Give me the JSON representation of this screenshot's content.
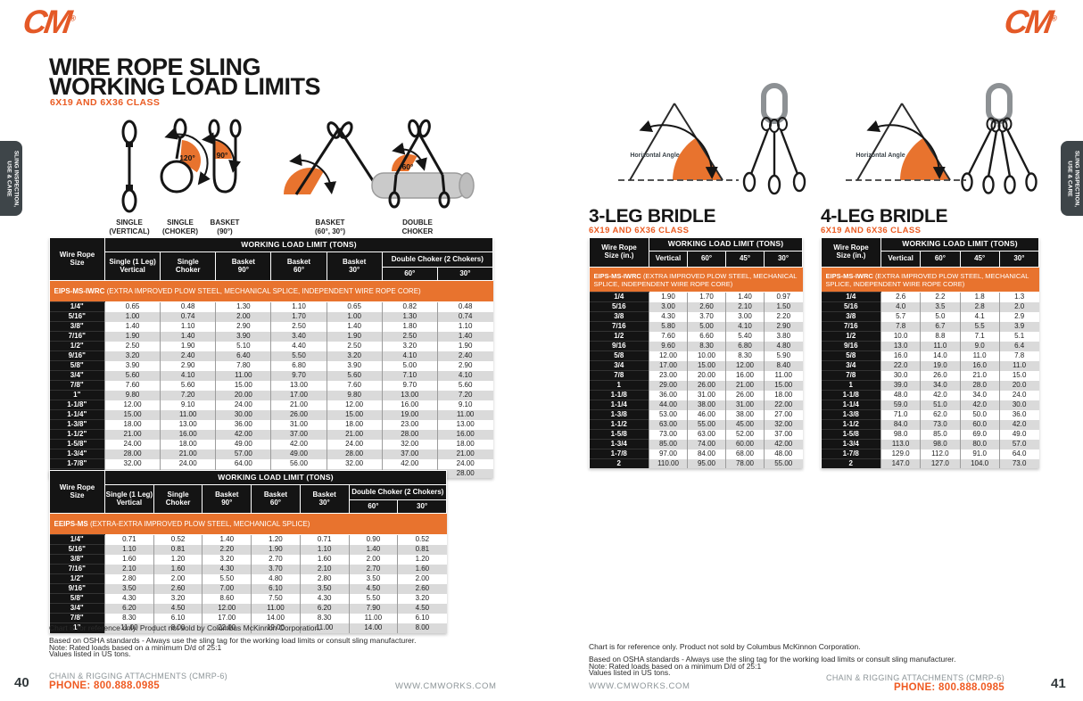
{
  "logo": {
    "text": "CM",
    "reg": "®"
  },
  "side_tab": {
    "label": "SLING INSPECTION,\nUSE & CARE"
  },
  "left_page": {
    "title_line1": "WIRE ROPE SLING",
    "title_line2": "WORKING LOAD LIMITS",
    "subtitle": "6X19 AND 6X36 CLASS",
    "diagram_labels": [
      "SINGLE\n(VERTICAL)",
      "SINGLE\n(CHOKER)",
      "BASKET\n(90°)",
      "BASKET\n(60°, 30°)",
      "DOUBLE\nCHOKER"
    ],
    "diagram_angles": {
      "single_choker": "120°",
      "basket_90": "90°",
      "double_choker": "60°"
    },
    "notes": [
      "Chart is for reference only. Product not sold by Columbus McKinnon Corporation.",
      "Based on OSHA standards - Always use the sling tag for the working load limits or consult sling manufacturer.",
      "Note: Rated loads based on a minimum D/d of 25:1",
      "Values listed in US tons."
    ],
    "footer": {
      "page": "40",
      "catalog": "CHAIN & RIGGING ATTACHMENTS (CMRP-6)",
      "phone": "PHONE: 800.888.0985",
      "website": "WWW.CMWORKS.COM"
    }
  },
  "table_headers": {
    "size": "Wire Rope\nSize",
    "size_in": "Wire Rope\nSize (in.)",
    "wll": "WORKING LOAD LIMIT (TONS)",
    "cols": [
      "Single (1 Leg)\nVertical",
      "Single\nChoker",
      "Basket\n90°",
      "Basket\n60°",
      "Basket\n30°"
    ],
    "double_choker": "Double Choker (2 Chokers)",
    "double_sub": [
      "60°",
      "30°"
    ],
    "bridle_cols": [
      "Vertical",
      "60°",
      "45°",
      "30°"
    ]
  },
  "eips_table": {
    "band_name": "EIPS-MS-IWRC",
    "band_desc": "(EXTRA IMPROVED PLOW STEEL, MECHANICAL SPLICE, INDEPENDENT WIRE ROPE CORE)",
    "rows": [
      [
        "1/4\"",
        "0.65",
        "0.48",
        "1.30",
        "1.10",
        "0.65",
        "0.82",
        "0.48"
      ],
      [
        "5/16\"",
        "1.00",
        "0.74",
        "2.00",
        "1.70",
        "1.00",
        "1.30",
        "0.74"
      ],
      [
        "3/8\"",
        "1.40",
        "1.10",
        "2.90",
        "2.50",
        "1.40",
        "1.80",
        "1.10"
      ],
      [
        "7/16\"",
        "1.90",
        "1.40",
        "3.90",
        "3.40",
        "1.90",
        "2.50",
        "1.40"
      ],
      [
        "1/2\"",
        "2.50",
        "1.90",
        "5.10",
        "4.40",
        "2.50",
        "3.20",
        "1.90"
      ],
      [
        "9/16\"",
        "3.20",
        "2.40",
        "6.40",
        "5.50",
        "3.20",
        "4.10",
        "2.40"
      ],
      [
        "5/8\"",
        "3.90",
        "2.90",
        "7.80",
        "6.80",
        "3.90",
        "5.00",
        "2.90"
      ],
      [
        "3/4\"",
        "5.60",
        "4.10",
        "11.00",
        "9.70",
        "5.60",
        "7.10",
        "4.10"
      ],
      [
        "7/8\"",
        "7.60",
        "5.60",
        "15.00",
        "13.00",
        "7.60",
        "9.70",
        "5.60"
      ],
      [
        "1\"",
        "9.80",
        "7.20",
        "20.00",
        "17.00",
        "9.80",
        "13.00",
        "7.20"
      ],
      [
        "1-1/8\"",
        "12.00",
        "9.10",
        "24.00",
        "21.00",
        "12.00",
        "16.00",
        "9.10"
      ],
      [
        "1-1/4\"",
        "15.00",
        "11.00",
        "30.00",
        "26.00",
        "15.00",
        "19.00",
        "11.00"
      ],
      [
        "1-3/8\"",
        "18.00",
        "13.00",
        "36.00",
        "31.00",
        "18.00",
        "23.00",
        "13.00"
      ],
      [
        "1-1/2\"",
        "21.00",
        "16.00",
        "42.00",
        "37.00",
        "21.00",
        "28.00",
        "16.00"
      ],
      [
        "1-5/8\"",
        "24.00",
        "18.00",
        "49.00",
        "42.00",
        "24.00",
        "32.00",
        "18.00"
      ],
      [
        "1-3/4\"",
        "28.00",
        "21.00",
        "57.00",
        "49.00",
        "28.00",
        "37.00",
        "21.00"
      ],
      [
        "1-7/8\"",
        "32.00",
        "24.00",
        "64.00",
        "56.00",
        "32.00",
        "42.00",
        "24.00"
      ],
      [
        "2\"",
        "37.00",
        "28.00",
        "73.00",
        "63.00",
        "37.00",
        "48.00",
        "28.00"
      ]
    ]
  },
  "eeips_table": {
    "band_name": "EEIPS-MS",
    "band_desc": "(EXTRA-EXTRA IMPROVED PLOW STEEL, MECHANICAL SPLICE)",
    "rows": [
      [
        "1/4\"",
        "0.71",
        "0.52",
        "1.40",
        "1.20",
        "0.71",
        "0.90",
        "0.52"
      ],
      [
        "5/16\"",
        "1.10",
        "0.81",
        "2.20",
        "1.90",
        "1.10",
        "1.40",
        "0.81"
      ],
      [
        "3/8\"",
        "1.60",
        "1.20",
        "3.20",
        "2.70",
        "1.60",
        "2.00",
        "1.20"
      ],
      [
        "7/16\"",
        "2.10",
        "1.60",
        "4.30",
        "3.70",
        "2.10",
        "2.70",
        "1.60"
      ],
      [
        "1/2\"",
        "2.80",
        "2.00",
        "5.50",
        "4.80",
        "2.80",
        "3.50",
        "2.00"
      ],
      [
        "9/16\"",
        "3.50",
        "2.60",
        "7.00",
        "6.10",
        "3.50",
        "4.50",
        "2.60"
      ],
      [
        "5/8\"",
        "4.30",
        "3.20",
        "8.60",
        "7.50",
        "4.30",
        "5.50",
        "3.20"
      ],
      [
        "3/4\"",
        "6.20",
        "4.50",
        "12.00",
        "11.00",
        "6.20",
        "7.90",
        "4.50"
      ],
      [
        "7/8\"",
        "8.30",
        "6.10",
        "17.00",
        "14.00",
        "8.30",
        "11.00",
        "6.10"
      ],
      [
        "1\"",
        "11.00",
        "8.00",
        "22.00",
        "19.00",
        "11.00",
        "14.00",
        "8.00"
      ]
    ]
  },
  "right_page": {
    "bridles": [
      {
        "title": "3-LEG BRIDLE",
        "subtitle": "6X19 AND 6X36 CLASS",
        "angle_label": "Horizontal Angle",
        "band_name": "EIPS-MS-IWRC",
        "band_desc": "(EXTRA IMPROVED PLOW STEEL, MECHANICAL SPLICE, INDEPENDENT WIRE ROPE CORE)",
        "rows": [
          [
            "1/4",
            "1.90",
            "1.70",
            "1.40",
            "0.97"
          ],
          [
            "5/16",
            "3.00",
            "2.60",
            "2.10",
            "1.50"
          ],
          [
            "3/8",
            "4.30",
            "3.70",
            "3.00",
            "2.20"
          ],
          [
            "7/16",
            "5.80",
            "5.00",
            "4.10",
            "2.90"
          ],
          [
            "1/2",
            "7.60",
            "6.60",
            "5.40",
            "3.80"
          ],
          [
            "9/16",
            "9.60",
            "8.30",
            "6.80",
            "4.80"
          ],
          [
            "5/8",
            "12.00",
            "10.00",
            "8.30",
            "5.90"
          ],
          [
            "3/4",
            "17.00",
            "15.00",
            "12.00",
            "8.40"
          ],
          [
            "7/8",
            "23.00",
            "20.00",
            "16.00",
            "11.00"
          ],
          [
            "1",
            "29.00",
            "26.00",
            "21.00",
            "15.00"
          ],
          [
            "1-1/8",
            "36.00",
            "31.00",
            "26.00",
            "18.00"
          ],
          [
            "1-1/4",
            "44.00",
            "38.00",
            "31.00",
            "22.00"
          ],
          [
            "1-3/8",
            "53.00",
            "46.00",
            "38.00",
            "27.00"
          ],
          [
            "1-1/2",
            "63.00",
            "55.00",
            "45.00",
            "32.00"
          ],
          [
            "1-5/8",
            "73.00",
            "63.00",
            "52.00",
            "37.00"
          ],
          [
            "1-3/4",
            "85.00",
            "74.00",
            "60.00",
            "42.00"
          ],
          [
            "1-7/8",
            "97.00",
            "84.00",
            "68.00",
            "48.00"
          ],
          [
            "2",
            "110.00",
            "95.00",
            "78.00",
            "55.00"
          ]
        ]
      },
      {
        "title": "4-LEG BRIDLE",
        "subtitle": "6X19 AND 6X36 CLASS",
        "angle_label": "Horizontal Angle",
        "band_name": "EIPS-MS-IWRC",
        "band_desc": "(EXTRA IMPROVED PLOW STEEL, MECHANICAL SPLICE, INDEPENDENT WIRE ROPE CORE)",
        "rows": [
          [
            "1/4",
            "2.6",
            "2.2",
            "1.8",
            "1.3"
          ],
          [
            "5/16",
            "4.0",
            "3.5",
            "2.8",
            "2.0"
          ],
          [
            "3/8",
            "5.7",
            "5.0",
            "4.1",
            "2.9"
          ],
          [
            "7/16",
            "7.8",
            "6.7",
            "5.5",
            "3.9"
          ],
          [
            "1/2",
            "10.0",
            "8.8",
            "7.1",
            "5.1"
          ],
          [
            "9/16",
            "13.0",
            "11.0",
            "9.0",
            "6.4"
          ],
          [
            "5/8",
            "16.0",
            "14.0",
            "11.0",
            "7.8"
          ],
          [
            "3/4",
            "22.0",
            "19.0",
            "16.0",
            "11.0"
          ],
          [
            "7/8",
            "30.0",
            "26.0",
            "21.0",
            "15.0"
          ],
          [
            "1",
            "39.0",
            "34.0",
            "28.0",
            "20.0"
          ],
          [
            "1-1/8",
            "48.0",
            "42.0",
            "34.0",
            "24.0"
          ],
          [
            "1-1/4",
            "59.0",
            "51.0",
            "42.0",
            "30.0"
          ],
          [
            "1-3/8",
            "71.0",
            "62.0",
            "50.0",
            "36.0"
          ],
          [
            "1-1/2",
            "84.0",
            "73.0",
            "60.0",
            "42.0"
          ],
          [
            "1-5/8",
            "98.0",
            "85.0",
            "69.0",
            "49.0"
          ],
          [
            "1-3/4",
            "113.0",
            "98.0",
            "80.0",
            "57.0"
          ],
          [
            "1-7/8",
            "129.0",
            "112.0",
            "91.0",
            "64.0"
          ],
          [
            "2",
            "147.0",
            "127.0",
            "104.0",
            "73.0"
          ]
        ]
      }
    ],
    "notes": [
      "Chart is for reference only. Product not sold by Columbus McKinnon Corporation.",
      "Based on OSHA standards - Always use the sling tag for the working load limits or consult sling manufacturer.",
      "Note: Rated loads based on a minimum D/d of 25:1",
      "Values listed in US tons."
    ],
    "footer": {
      "page": "41",
      "catalog": "CHAIN & RIGGING ATTACHMENTS (CMRP-6)",
      "phone": "PHONE: 800.888.0985",
      "website": "WWW.CMWORKS.COM"
    }
  }
}
